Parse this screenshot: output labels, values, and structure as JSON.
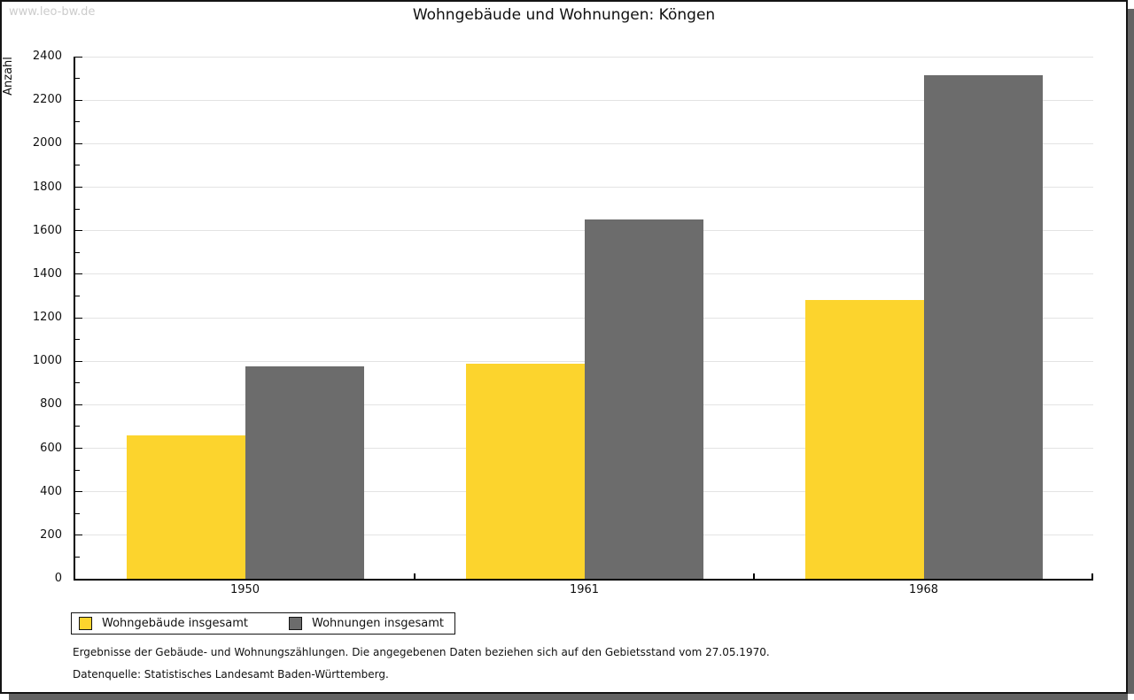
{
  "watermark": "www.leo-bw.de",
  "title": "Wohngebäude und Wohnungen: Köngen",
  "chart_data": {
    "type": "bar",
    "title": "Wohngebäude und Wohnungen: Köngen",
    "ylabel": "Anzahl",
    "xlabel": "",
    "ylim": [
      0,
      2400
    ],
    "y_tick_step": 200,
    "y_minor_tick_step": 100,
    "grid": true,
    "legend_position": "bottom-left",
    "categories": [
      "1950",
      "1961",
      "1968"
    ],
    "series": [
      {
        "name": "Wohngebäude insgesamt",
        "color": "#FCD42D",
        "values": [
          660,
          990,
          1280
        ]
      },
      {
        "name": "Wohnungen insgesamt",
        "color": "#6C6C6C",
        "values": [
          975,
          1650,
          2315
        ]
      }
    ]
  },
  "footnotes": {
    "line1": "Ergebnisse der Gebäude- und Wohnungszählungen. Die angegebenen Daten beziehen sich auf den Gebietsstand vom 27.05.1970.",
    "line2": "Datenquelle: Statistisches Landesamt Baden-Württemberg."
  },
  "colors": {
    "bar_yellow": "#FCD42D",
    "bar_gray": "#6C6C6C",
    "grid": "#E3E3E3",
    "axis": "#000000",
    "watermark": "#CCCCCC",
    "shadow": "#636363",
    "frame_border": "#141414"
  }
}
